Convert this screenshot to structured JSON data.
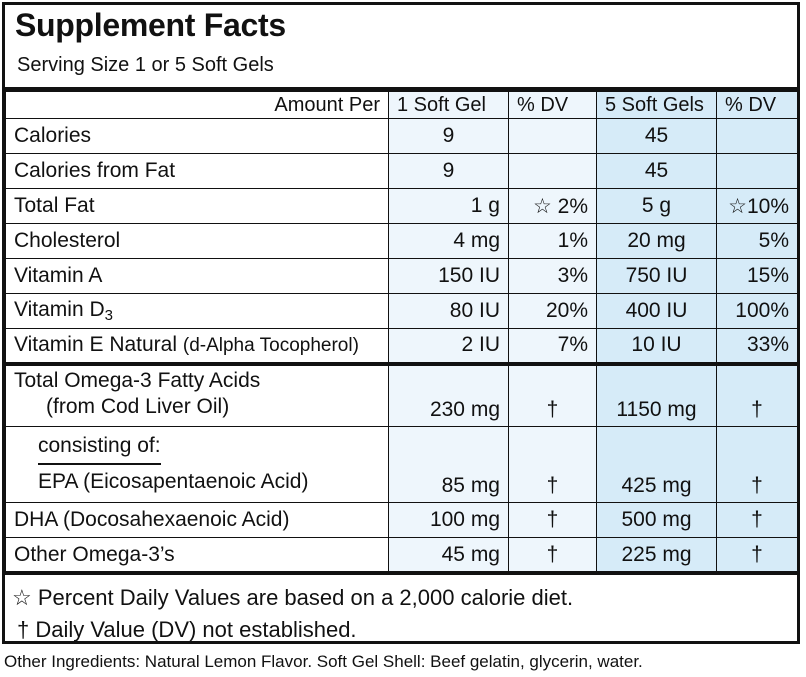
{
  "title": "Supplement Facts",
  "serving": "Serving Size 1 or 5 Soft Gels",
  "header": {
    "amount_per": "Amount Per",
    "one": "1 Soft Gel",
    "dv1": "% DV",
    "five": "5 Soft Gels",
    "dv5": "% DV"
  },
  "rows": [
    {
      "name": "Calories",
      "one": "9",
      "dv1": "",
      "five": "45",
      "dv5": ""
    },
    {
      "name": "Calories from Fat",
      "one": "9",
      "dv1": "",
      "five": "45",
      "dv5": ""
    },
    {
      "name": "Total Fat",
      "one": "1 g",
      "dv1": "☆ 2%",
      "five": "5 g",
      "dv5": "☆10%"
    },
    {
      "name": "Cholesterol",
      "one": "4 mg",
      "dv1": "1%",
      "five": "20 mg",
      "dv5": "5%"
    },
    {
      "name": "Vitamin A",
      "one": "150 IU",
      "dv1": "3%",
      "five": "750 IU",
      "dv5": "15%"
    },
    {
      "name": "Vitamin D",
      "name_sub": "3",
      "one": "80 IU",
      "dv1": "20%",
      "five": "400 IU",
      "dv5": "100%"
    },
    {
      "name": "Vitamin E Natural",
      "name_extra": "(d-Alpha Tocopherol)",
      "one": "2 IU",
      "dv1": "7%",
      "five": "10 IU",
      "dv5": "33%"
    },
    {
      "name": "Total Omega-3 Fatty Acids",
      "name_line2": "(from Cod Liver Oil)",
      "one": "230 mg",
      "dv1": "†",
      "five": "1150 mg",
      "dv5": "†"
    },
    {
      "name": "consisting of:",
      "name_line2": "EPA (Eicosapentaenoic Acid)",
      "one": "85 mg",
      "dv1": "†",
      "five": "425 mg",
      "dv5": "†"
    },
    {
      "name": "DHA (Docosahexaenoic Acid)",
      "one": "100 mg",
      "dv1": "†",
      "five": "500 mg",
      "dv5": "†"
    },
    {
      "name": "Other Omega-3’s",
      "one": "45 mg",
      "dv1": "†",
      "five": "225 mg",
      "dv5": "†"
    }
  ],
  "footnotes": {
    "star": "☆ Percent Daily Values are based on a 2,000 calorie diet.",
    "dagger": "† Daily Value (DV) not established."
  },
  "other_ingredients": "Other Ingredients: Natural Lemon Flavor. Soft Gel Shell: Beef gelatin, glycerin, water.",
  "colors": {
    "one_col_bg": "#eef6fc",
    "five_col_bg": "#d6ebf8",
    "ink": "#111111"
  }
}
